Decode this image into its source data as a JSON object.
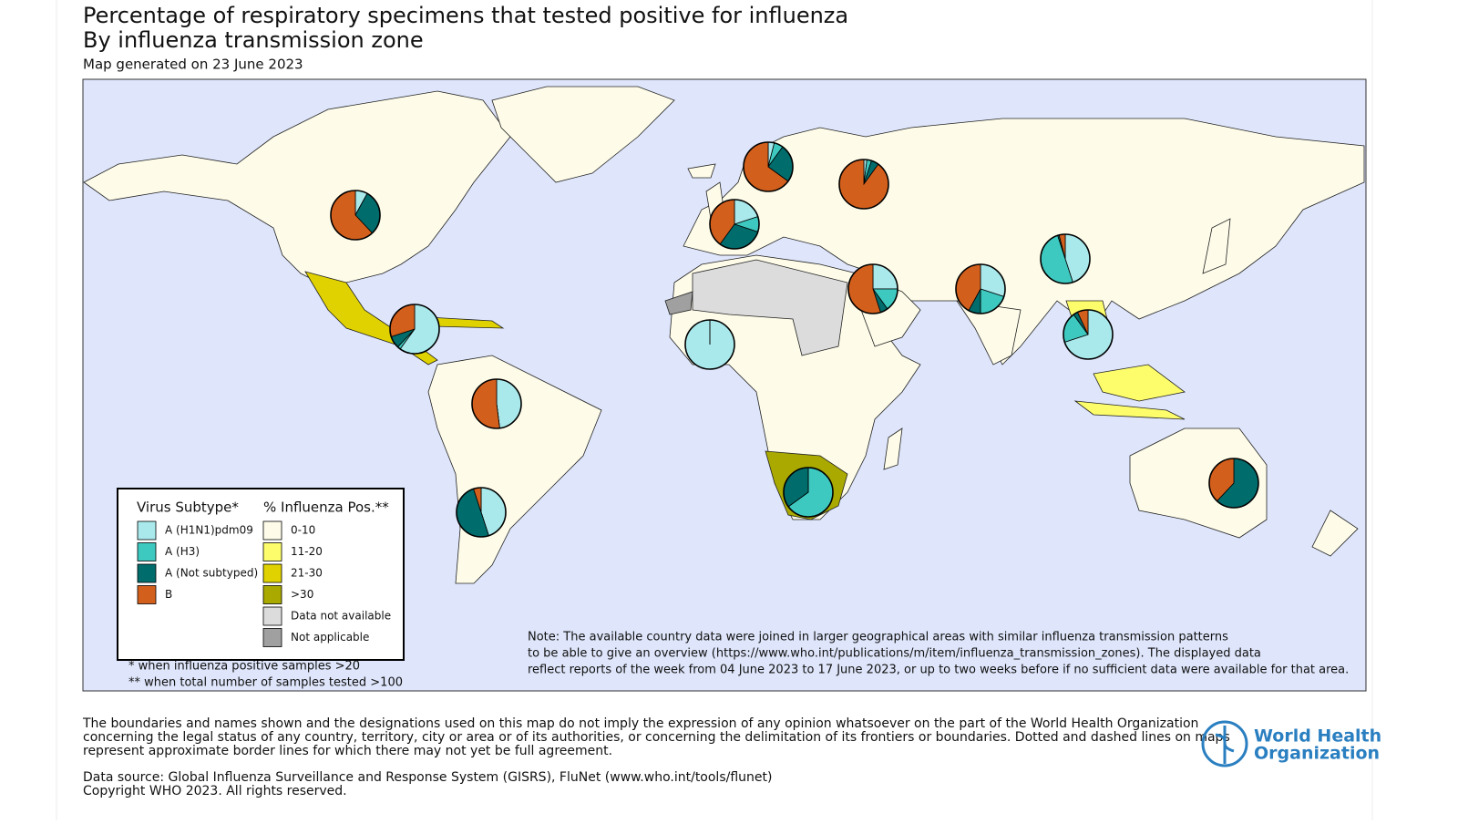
{
  "header": {
    "title": "Percentage of respiratory specimens that tested positive for influenza",
    "subtitle": "By influenza transmission zone",
    "date": "Map generated on 23 June 2023"
  },
  "legend": {
    "subtype_title": "Virus Subtype*",
    "subtypes": [
      {
        "label": "A (H1N1)pdm09",
        "color": "#a9e9ec"
      },
      {
        "label": "A (H3)",
        "color": "#3ec9c0"
      },
      {
        "label": "A (Not subtyped)",
        "color": "#006c6c"
      },
      {
        "label": "B",
        "color": "#d35f1d"
      }
    ],
    "positivity_title": "% Influenza Pos.**",
    "positivity": [
      {
        "label": "0-10",
        "color": "#fefce9"
      },
      {
        "label": "11-20",
        "color": "#fdfd6c"
      },
      {
        "label": "21-30",
        "color": "#e0d200"
      },
      {
        "label": ">30",
        "color": "#a9a900"
      },
      {
        "label": "Data not available",
        "color": "#dcdcdc"
      },
      {
        "label": "Not applicable",
        "color": "#a0a0a0"
      }
    ]
  },
  "footnotes": [
    "* when influenza positive samples >20",
    "** when total number of samples tested >100"
  ],
  "note": [
    "Note: The available country data were joined in larger geographical areas with similar influenza transmission patterns",
    "to be able to give an overview (https://www.who.int/publications/m/item/influenza_transmission_zones). The displayed data",
    "reflect reports of the week from 04 June 2023 to 17 June 2023, or up to two weeks before if no sufficient data were available for that area."
  ],
  "disclaimer": [
    "The boundaries and names shown and the designations used on this map do not imply the expression of any opinion whatsoever on the part of the World Health Organization",
    "concerning the legal status of any country, territory, city or area or of its authorities, or concerning the delimitation of its frontiers or boundaries. Dotted and dashed lines on maps",
    "represent approximate border lines for which there may not yet be full agreement."
  ],
  "source": [
    "Data source: Global Influenza Surveillance and Response System (GISRS), FluNet (www.who.int/tools/flunet)",
    "Copyright WHO 2023. All rights reserved."
  ],
  "logo": [
    "World Health",
    "Organization"
  ],
  "pies": [
    [
      8,
      0,
      30,
      62
    ],
    [
      60,
      2,
      8,
      30
    ],
    [
      48,
      0,
      0,
      52
    ],
    [
      45,
      0,
      50,
      5
    ],
    [
      4,
      6,
      25,
      65
    ],
    [
      2,
      3,
      5,
      90
    ],
    [
      20,
      10,
      30,
      40
    ],
    [
      100,
      0,
      0,
      0
    ],
    [
      25,
      15,
      5,
      55
    ],
    [
      30,
      20,
      8,
      42
    ],
    [
      45,
      50,
      1,
      4
    ],
    [
      70,
      20,
      3,
      7
    ],
    [
      0,
      65,
      35,
      0
    ],
    [
      0,
      0,
      62,
      38
    ]
  ]
}
